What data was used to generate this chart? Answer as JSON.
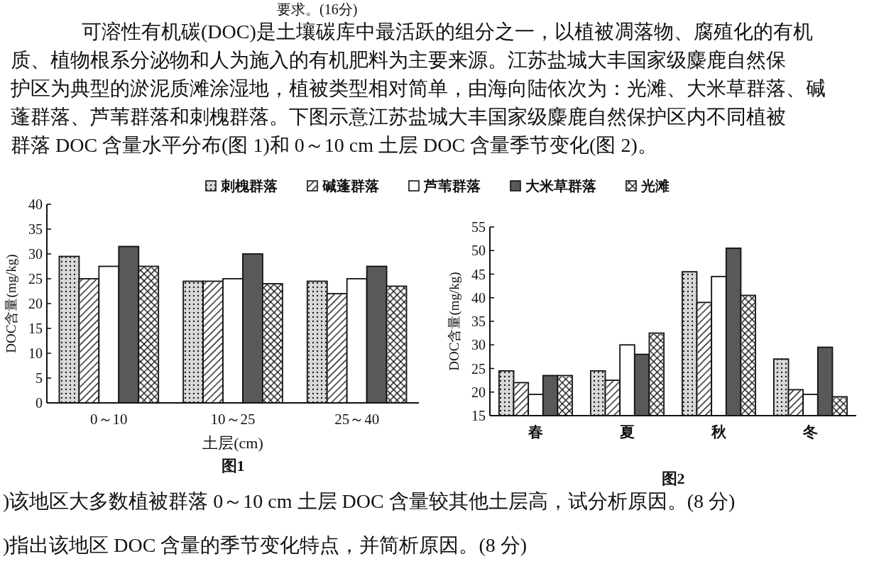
{
  "chart_data": [
    {
      "type": "bar",
      "title": "图1",
      "xlabel": "土层(cm)",
      "ylabel": "DOC含量(mg/kg)",
      "annotations": [
        "要求。(16分)",
        "可溶性有机碳(DOC)是土壤碳库中最活跃的组分之一，以植被凋落物、腐殖化的有机",
        "质、植物根系分泌物和人为施入的有机肥料为主要来源。江苏盐城大丰国家级麋鹿自然保",
        "护区为典型的淤泥质滩涂湿地，植被类型相对简单，由海向陆依次为：光滩、大米草群落、碱",
        "蓬群落、芦苇群落和刺槐群落。下图示意江苏盐城大丰国家级麋鹿自然保护区内不同植被",
        "群落 DOC 含量水平分布(图 1)和 0～10 cm 土层 DOC 含量季节变化(图 2)。"
      ],
      "categories": [
        "0～10",
        "10～25",
        "25～40"
      ],
      "series": [
        {
          "name": "刺槐群落",
          "color": "#d9d9d9",
          "values": [
            29.5,
            24.5,
            24.5
          ]
        },
        {
          "name": "碱蓬群落",
          "color": "#ffffff",
          "values": [
            25,
            24.5,
            22
          ]
        },
        {
          "name": "芦苇群落",
          "color": "#ffffff",
          "values": [
            27.5,
            25,
            25
          ]
        },
        {
          "name": "大米草群落",
          "color": "#595959",
          "values": [
            31.5,
            30,
            27.5
          ]
        },
        {
          "name": "光滩",
          "color": "#ffffff",
          "values": [
            27.5,
            24,
            23.5
          ]
        }
      ],
      "ylim": [
        0,
        40
      ],
      "yticks": [
        0,
        5,
        10,
        15,
        20,
        25,
        30,
        35,
        40
      ],
      "legend": "top"
    },
    {
      "type": "bar",
      "title": "图2",
      "ylabel": "DOC含量(mg/kg)",
      "annotations": [
        ")该地区大多数植被群落 0～10 cm 土层 DOC 含量较其他土层高，试分析原因。(8 分)",
        ")指出该地区 DOC 含量的季节变化特点，并简析原因。(8 分)"
      ],
      "categories": [
        "春",
        "夏",
        "秋",
        "冬"
      ],
      "series": [
        {
          "color": "#d9d9d9",
          "values": [
            24.5,
            24.5,
            45.5,
            27
          ]
        },
        {
          "color": "#ffffff",
          "values": [
            22,
            22.5,
            39,
            20.5
          ]
        },
        {
          "color": "#ffffff",
          "values": [
            19.5,
            30,
            44.5,
            19.5
          ]
        },
        {
          "color": "#595959",
          "values": [
            23.5,
            28,
            50.5,
            29.5
          ]
        },
        {
          "color": "#ffffff",
          "values": [
            23.5,
            32.5,
            40.5,
            19
          ]
        }
      ],
      "ylim": [
        15,
        55
      ],
      "yticks": [
        15,
        20,
        25,
        30,
        35,
        40,
        45,
        50,
        55
      ]
    }
  ]
}
